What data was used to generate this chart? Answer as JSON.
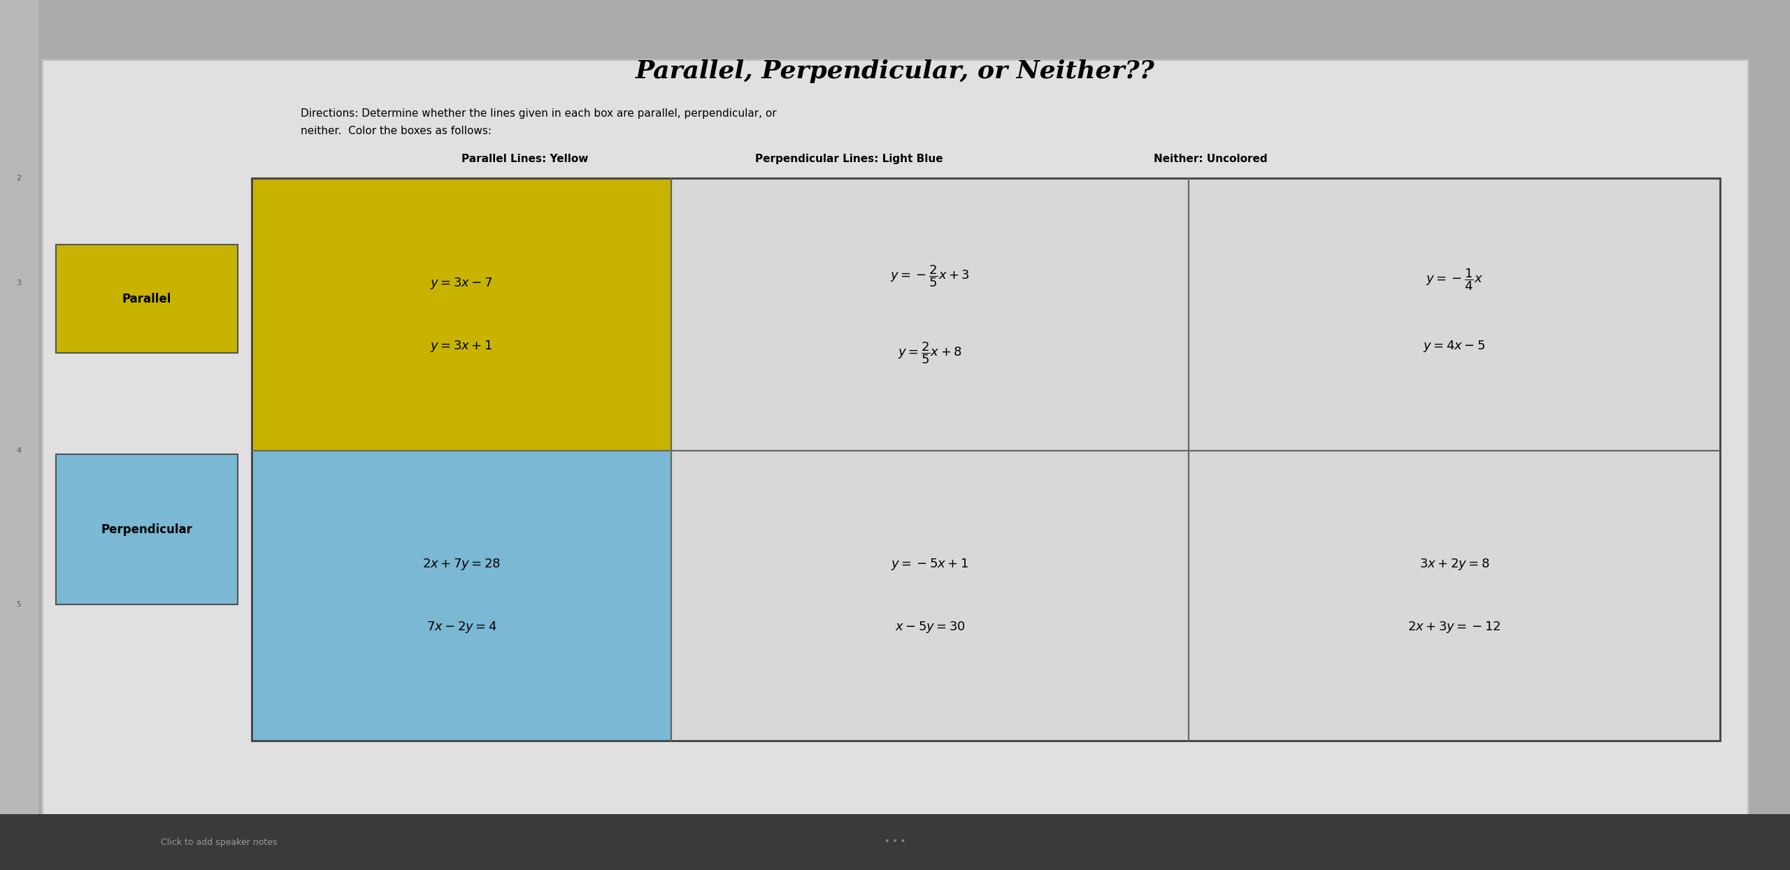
{
  "title": "Parallel, Perpendicular, or Neither??",
  "directions_line1": "Directions: Determine whether the lines given in each box are parallel, perpendicular, or",
  "directions_line2": "neither.  Color the boxes as follows:",
  "legend_parallel": "Parallel Lines: Yellow",
  "legend_perp": "Perpendicular Lines: Light Blue",
  "legend_neither": "Neither: Uncolored",
  "parallel_label": "Parallel",
  "perpendicular_label": "Perpendicular",
  "parallel_color": "#c8b400",
  "perp_color": "#7ab8d4",
  "slide_bg": "#dcdcdc",
  "outer_bg": "#aaaaaa",
  "table_uncolored": "#d8d8d8",
  "cell_border": "#888888",
  "title_fontsize": 26,
  "directions_fontsize": 11,
  "legend_fontsize": 11,
  "label_fontsize": 12,
  "cell_fontsize": 13,
  "row1_col1_color": "#c8b400",
  "row1_col2_color": "#d8d8d8",
  "row1_col3_color": "#d8d8d8",
  "row2_col1_color": "#7ab8d4",
  "row2_col2_color": "#d8d8d8",
  "row2_col3_color": "#d8d8d8"
}
